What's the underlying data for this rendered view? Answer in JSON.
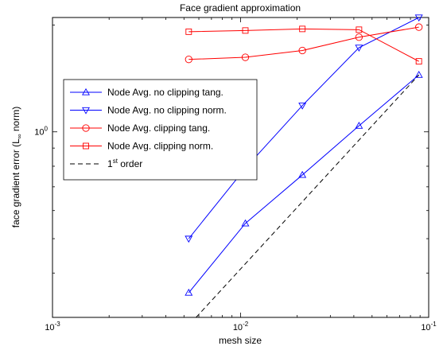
{
  "chart_data": {
    "type": "line",
    "title": "Face gradient approximation",
    "xlabel": "mesh size",
    "ylabel": "face gradient error (L",
    "ylabel_sub": "∞",
    "ylabel_suffix": " norm)",
    "xscale": "log",
    "yscale": "log",
    "xlim": [
      0.001,
      0.1
    ],
    "ylim": [
      0.3,
      2.1
    ],
    "grid": false,
    "legend_position": "center-left",
    "xtick_labels": [
      {
        "base": "10",
        "exp": "-3",
        "value": 0.001
      },
      {
        "base": "10",
        "exp": "-2",
        "value": 0.01
      },
      {
        "base": "10",
        "exp": "-1",
        "value": 0.1
      }
    ],
    "ytick_labels": [
      {
        "base": "10",
        "exp": "0",
        "value": 1
      }
    ],
    "x": [
      0.0053,
      0.0106,
      0.0213,
      0.0426,
      0.0887
    ],
    "series": [
      {
        "name": "Node Avg. no clipping tang.",
        "color": "#0000ff",
        "marker": "triangle-up",
        "dash": "solid",
        "values": [
          0.352,
          0.552,
          0.756,
          1.04,
          1.447
        ]
      },
      {
        "name": "Node Avg. no clipping norm.",
        "color": "#0000ff",
        "marker": "triangle-down",
        "dash": "solid",
        "values": [
          0.5,
          0.79,
          1.186,
          1.727,
          2.1
        ]
      },
      {
        "name": "Node Avg. clipping tang.",
        "color": "#ff0000",
        "marker": "circle",
        "dash": "solid",
        "values": [
          1.6,
          1.622,
          1.695,
          1.848,
          1.973
        ]
      },
      {
        "name": "Node Avg. clipping norm.",
        "color": "#ff0000",
        "marker": "square",
        "dash": "solid",
        "values": [
          1.915,
          1.93,
          1.95,
          1.94,
          1.58
        ]
      },
      {
        "name": "1",
        "name_sup": "st",
        "name_suffix": " order",
        "color": "#000000",
        "marker": "none",
        "dash": "dashed",
        "x": [
          0.0058,
          0.0887
        ],
        "values": [
          0.3,
          1.447
        ]
      }
    ]
  }
}
